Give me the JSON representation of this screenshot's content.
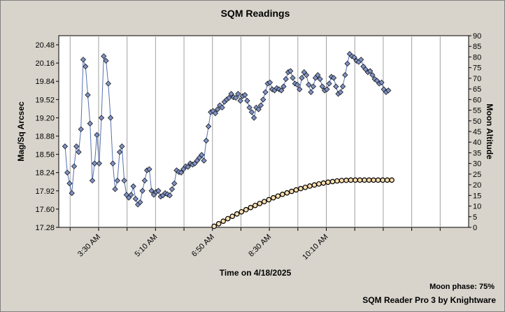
{
  "chart_data": {
    "type": "scatter",
    "title": "SQM Readings",
    "xlabel": "Time on 4/18/2025",
    "ylabel_left": "Mag/Sq Arcsec",
    "ylabel_right": "Moon Altitude",
    "x_ticks": [
      "3:30 AM",
      "5:10 AM",
      "6:50 AM",
      "8:30 AM",
      "10:10 AM"
    ],
    "x_tick_minutes": [
      210,
      310,
      410,
      510,
      610
    ],
    "x_range_minutes": [
      140,
      860
    ],
    "y_left_ticks": [
      "20.48",
      "20.16",
      "19.84",
      "19.52",
      "19.20",
      "18.88",
      "18.56",
      "18.24",
      "17.92",
      "17.60",
      "17.28"
    ],
    "y_left_range": [
      17.28,
      20.64
    ],
    "y_right_ticks": [
      "90",
      "85",
      "80",
      "75",
      "70",
      "65",
      "60",
      "55",
      "50",
      "45",
      "40",
      "35",
      "30",
      "25",
      "20",
      "15",
      "10",
      "5",
      "0"
    ],
    "y_right_range": [
      0,
      90
    ],
    "grid": "vertical",
    "series": [
      {
        "name": "",
        "axis": "left",
        "color": "#7f93c8",
        "x_minutes": [
          151,
          155,
          159,
          163,
          167,
          171,
          175,
          179,
          183,
          187,
          191,
          195,
          199,
          203,
          207,
          211,
          215,
          219,
          223,
          227,
          231,
          235,
          239,
          243,
          247,
          251,
          255,
          259,
          263,
          267,
          271,
          275,
          279,
          283,
          287,
          291,
          295,
          299,
          303,
          307,
          311,
          315,
          319,
          323,
          327,
          331,
          335,
          339,
          343,
          347,
          351,
          355,
          359,
          363,
          367,
          371,
          375,
          379,
          383,
          387,
          391,
          395,
          399,
          403,
          407,
          411,
          415,
          419,
          423,
          427,
          431,
          435,
          439,
          443,
          447,
          451,
          455,
          459,
          463,
          467,
          471,
          475,
          479,
          483,
          487,
          491,
          495,
          499,
          503,
          507,
          511,
          515,
          519,
          523,
          527,
          531,
          535,
          539,
          543,
          547,
          551,
          555,
          559,
          563,
          567,
          571,
          575,
          579,
          583,
          587,
          591,
          595,
          599,
          603,
          607,
          611,
          615,
          619,
          623,
          627,
          631,
          635,
          639,
          643,
          647,
          651,
          655,
          659,
          663,
          667,
          671,
          675,
          679,
          683,
          687,
          691,
          695,
          699,
          703,
          707,
          711,
          715,
          719
        ],
        "values": [
          18.7,
          18.24,
          18.05,
          17.88,
          18.35,
          18.7,
          18.6,
          19.0,
          20.22,
          20.1,
          19.6,
          19.1,
          18.1,
          18.4,
          18.9,
          18.4,
          19.2,
          20.28,
          20.2,
          19.8,
          19.2,
          18.4,
          17.95,
          18.1,
          18.6,
          18.7,
          18.1,
          17.85,
          17.8,
          17.85,
          18.0,
          17.78,
          17.68,
          17.72,
          17.92,
          18.1,
          18.28,
          18.3,
          17.92,
          17.85,
          17.9,
          17.92,
          17.82,
          17.84,
          17.88,
          17.86,
          17.84,
          17.95,
          18.05,
          18.28,
          18.25,
          18.24,
          18.3,
          18.35,
          18.34,
          18.4,
          18.38,
          18.4,
          18.45,
          18.5,
          18.55,
          18.45,
          18.8,
          19.05,
          19.3,
          19.32,
          19.28,
          19.35,
          19.42,
          19.38,
          19.48,
          19.52,
          19.55,
          19.62,
          19.56,
          19.55,
          19.62,
          19.5,
          19.58,
          19.6,
          19.5,
          19.38,
          19.3,
          19.2,
          19.38,
          19.35,
          19.42,
          19.52,
          19.65,
          19.8,
          19.82,
          19.7,
          19.68,
          19.72,
          19.7,
          19.68,
          19.75,
          19.88,
          20.0,
          20.02,
          19.9,
          19.8,
          19.78,
          19.7,
          19.9,
          20.0,
          19.95,
          19.78,
          19.65,
          19.75,
          19.9,
          19.95,
          19.88,
          19.75,
          19.68,
          19.7,
          19.8,
          19.92,
          19.9,
          19.75,
          19.62,
          19.65,
          19.75,
          19.95,
          20.15,
          20.32,
          20.28,
          20.26,
          20.2,
          20.18,
          20.22,
          20.1,
          20.05,
          20.0,
          20.02,
          19.95,
          19.88,
          19.85,
          19.8,
          19.82,
          19.7,
          19.65,
          19.68
        ]
      },
      {
        "name": "",
        "axis": "right",
        "color": "#ffe0b0",
        "x_minutes": [
          413,
          421,
          429,
          437,
          445,
          453,
          461,
          469,
          477,
          485,
          493,
          501,
          509,
          517,
          525,
          533,
          541,
          549,
          557,
          565,
          573,
          581,
          589,
          597,
          605,
          613,
          621,
          629,
          637,
          645,
          653,
          661,
          669,
          677,
          685,
          693,
          701,
          709,
          717,
          725
        ],
        "values": [
          0.5,
          1.7,
          2.9,
          4.1,
          5.2,
          6.3,
          7.3,
          8.3,
          9.3,
          10.3,
          11.2,
          12.1,
          13.0,
          13.9,
          14.7,
          15.5,
          16.2,
          16.9,
          17.6,
          18.2,
          18.8,
          19.4,
          19.9,
          20.4,
          20.8,
          21.2,
          21.5,
          21.8,
          22.0,
          22.1,
          22.2,
          22.2,
          22.2,
          22.2,
          22.2,
          22.2,
          22.2,
          22.2,
          22.2,
          22.2
        ]
      }
    ]
  },
  "footer": {
    "moon_phase": "Moon phase: 75%",
    "credit": "SQM Reader Pro 3 by Knightware"
  }
}
